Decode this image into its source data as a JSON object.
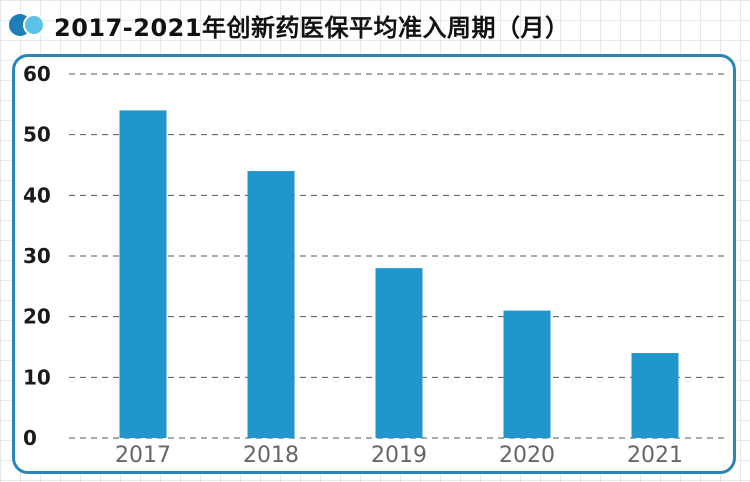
{
  "title": "2017-2021年创新药医保平均准入周期（月）",
  "colors": {
    "bar": "#2196cc",
    "frame": "#2a86b5",
    "icon_dark": "#1e7fb8",
    "icon_light": "#5dc0e8",
    "grid": "#555555"
  },
  "chart_data": {
    "type": "bar",
    "title": "2017-2021年创新药医保平均准入周期（月）",
    "categories": [
      "2017",
      "2018",
      "2019",
      "2020",
      "2021"
    ],
    "values": [
      54,
      44,
      28,
      21,
      14
    ],
    "ylim": [
      0,
      60
    ],
    "yticks": [
      0,
      10,
      20,
      30,
      40,
      50,
      60
    ],
    "xlabel": "",
    "ylabel": "",
    "grid": true,
    "legend": "none"
  }
}
